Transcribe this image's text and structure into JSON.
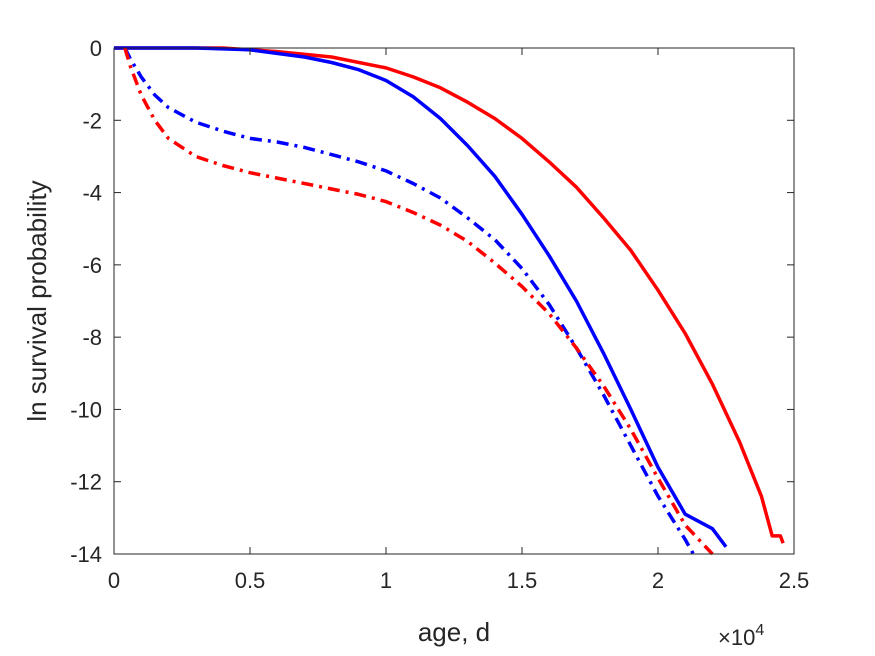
{
  "chart_data": {
    "type": "line",
    "title": "",
    "xlabel": "age, d",
    "ylabel": "ln survival probability",
    "x_multiplier_label": {
      "base": "×10",
      "exponent": "4"
    },
    "xlim": [
      0,
      2.5
    ],
    "ylim": [
      -14,
      0
    ],
    "x_ticks": [
      0,
      0.5,
      1,
      1.5,
      2,
      2.5
    ],
    "x_tick_labels": [
      "0",
      "0.5",
      "1",
      "1.5",
      "2",
      "2.5"
    ],
    "y_ticks": [
      0,
      -2,
      -4,
      -6,
      -8,
      -10,
      -12,
      -14
    ],
    "y_tick_labels": [
      "0",
      "-2",
      "-4",
      "-6",
      "-8",
      "-10",
      "-12",
      "-14"
    ],
    "grid": false,
    "legend": "none",
    "series": [
      {
        "color": "#ff0000",
        "style": "solid",
        "points": [
          [
            0,
            0
          ],
          [
            0.4,
            0
          ],
          [
            0.6,
            -0.1
          ],
          [
            0.8,
            -0.25
          ],
          [
            1.0,
            -0.55
          ],
          [
            1.1,
            -0.8
          ],
          [
            1.2,
            -1.1
          ],
          [
            1.3,
            -1.5
          ],
          [
            1.4,
            -1.95
          ],
          [
            1.5,
            -2.5
          ],
          [
            1.6,
            -3.15
          ],
          [
            1.7,
            -3.85
          ],
          [
            1.8,
            -4.7
          ],
          [
            1.9,
            -5.6
          ],
          [
            2.0,
            -6.7
          ],
          [
            2.1,
            -7.9
          ],
          [
            2.2,
            -9.3
          ],
          [
            2.3,
            -10.9
          ],
          [
            2.38,
            -12.4
          ],
          [
            2.42,
            -13.5
          ],
          [
            2.45,
            -13.5
          ],
          [
            2.46,
            -13.7
          ]
        ]
      },
      {
        "color": "#0000ff",
        "style": "solid",
        "points": [
          [
            0,
            0
          ],
          [
            0.3,
            0
          ],
          [
            0.5,
            -0.05
          ],
          [
            0.7,
            -0.25
          ],
          [
            0.8,
            -0.4
          ],
          [
            0.9,
            -0.6
          ],
          [
            1.0,
            -0.9
          ],
          [
            1.1,
            -1.35
          ],
          [
            1.2,
            -1.95
          ],
          [
            1.3,
            -2.7
          ],
          [
            1.4,
            -3.55
          ],
          [
            1.5,
            -4.6
          ],
          [
            1.6,
            -5.75
          ],
          [
            1.7,
            -7.0
          ],
          [
            1.8,
            -8.45
          ],
          [
            1.9,
            -10.0
          ],
          [
            2.0,
            -11.6
          ],
          [
            2.1,
            -12.9
          ],
          [
            2.2,
            -13.3
          ],
          [
            2.25,
            -13.8
          ]
        ]
      },
      {
        "color": "#0000ff",
        "style": "dashdot",
        "points": [
          [
            0.04,
            0
          ],
          [
            0.06,
            -0.3
          ],
          [
            0.1,
            -0.8
          ],
          [
            0.15,
            -1.3
          ],
          [
            0.2,
            -1.65
          ],
          [
            0.3,
            -2.05
          ],
          [
            0.4,
            -2.3
          ],
          [
            0.5,
            -2.5
          ],
          [
            0.6,
            -2.6
          ],
          [
            0.7,
            -2.75
          ],
          [
            0.8,
            -2.95
          ],
          [
            0.9,
            -3.15
          ],
          [
            1.0,
            -3.4
          ],
          [
            1.1,
            -3.75
          ],
          [
            1.2,
            -4.15
          ],
          [
            1.3,
            -4.7
          ],
          [
            1.4,
            -5.3
          ],
          [
            1.5,
            -6.1
          ],
          [
            1.6,
            -7.1
          ],
          [
            1.7,
            -8.3
          ],
          [
            1.8,
            -9.6
          ],
          [
            1.9,
            -11.0
          ],
          [
            2.0,
            -12.4
          ],
          [
            2.1,
            -13.6
          ],
          [
            2.13,
            -14
          ]
        ]
      },
      {
        "color": "#ff0000",
        "style": "dashdot",
        "points": [
          [
            0.04,
            0
          ],
          [
            0.06,
            -0.5
          ],
          [
            0.1,
            -1.3
          ],
          [
            0.15,
            -2.0
          ],
          [
            0.2,
            -2.5
          ],
          [
            0.3,
            -3.0
          ],
          [
            0.4,
            -3.25
          ],
          [
            0.5,
            -3.45
          ],
          [
            0.6,
            -3.6
          ],
          [
            0.7,
            -3.75
          ],
          [
            0.8,
            -3.9
          ],
          [
            0.9,
            -4.05
          ],
          [
            1.0,
            -4.25
          ],
          [
            1.1,
            -4.55
          ],
          [
            1.2,
            -4.9
          ],
          [
            1.3,
            -5.35
          ],
          [
            1.4,
            -5.95
          ],
          [
            1.5,
            -6.6
          ],
          [
            1.6,
            -7.35
          ],
          [
            1.7,
            -8.3
          ],
          [
            1.8,
            -9.35
          ],
          [
            1.9,
            -10.55
          ],
          [
            2.0,
            -11.9
          ],
          [
            2.1,
            -13.2
          ],
          [
            2.2,
            -14
          ]
        ]
      }
    ]
  }
}
